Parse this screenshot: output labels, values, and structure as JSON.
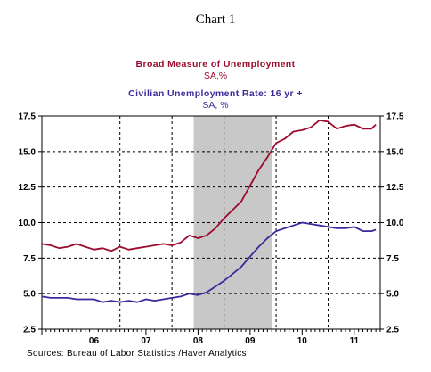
{
  "chart_title": "Chart 1",
  "sources": "Sources:  Bureau of Labor Statistics /Haver Analytics",
  "chart_data": {
    "type": "line",
    "xlim": [
      2005.0,
      2011.5
    ],
    "ylim": [
      2.5,
      17.5
    ],
    "yticks": [
      2.5,
      5.0,
      7.5,
      10.0,
      12.5,
      15.0,
      17.5
    ],
    "ytick_labels": [
      "2.5",
      "5.0",
      "7.5",
      "10.0",
      "12.5",
      "15.0",
      "17.5"
    ],
    "xtick_labels": [
      {
        "label": "06",
        "x": 2006.0
      },
      {
        "label": "07",
        "x": 2007.0
      },
      {
        "label": "08",
        "x": 2008.0
      },
      {
        "label": "09",
        "x": 2009.0
      },
      {
        "label": "10",
        "x": 2010.0
      },
      {
        "label": "11",
        "x": 2011.0
      }
    ],
    "grid": true,
    "recession_shading": {
      "start": 2007.917,
      "end": 2009.417,
      "color": "#c8c8c8"
    },
    "series": [
      {
        "name": "Broad Measure of Unemployment",
        "unit_label": "SA,%",
        "color": "#9b0c2e",
        "x": [
          2005.0,
          2005.167,
          2005.333,
          2005.5,
          2005.667,
          2005.833,
          2006.0,
          2006.167,
          2006.333,
          2006.5,
          2006.667,
          2006.833,
          2007.0,
          2007.167,
          2007.333,
          2007.5,
          2007.667,
          2007.833,
          2008.0,
          2008.167,
          2008.333,
          2008.5,
          2008.667,
          2008.833,
          2009.0,
          2009.167,
          2009.333,
          2009.5,
          2009.667,
          2009.833,
          2010.0,
          2010.167,
          2010.333,
          2010.5,
          2010.667,
          2010.833,
          2011.0,
          2011.167,
          2011.333,
          2011.417
        ],
        "y": [
          8.5,
          8.4,
          8.2,
          8.3,
          8.5,
          8.3,
          8.1,
          8.2,
          8.0,
          8.3,
          8.1,
          8.2,
          8.3,
          8.4,
          8.5,
          8.4,
          8.6,
          9.1,
          8.9,
          9.1,
          9.6,
          10.3,
          10.9,
          11.5,
          12.6,
          13.7,
          14.6,
          15.6,
          15.9,
          16.4,
          16.5,
          16.7,
          17.2,
          17.1,
          16.6,
          16.8,
          16.9,
          16.6,
          16.6,
          16.9
        ],
        "raw_note": ""
      },
      {
        "name": "Civilian Unemployment Rate: 16 yr +",
        "unit_label": "SA, %",
        "color": "#3a2a9b",
        "x": [
          2005.0,
          2005.167,
          2005.333,
          2005.5,
          2005.667,
          2005.833,
          2006.0,
          2006.167,
          2006.333,
          2006.5,
          2006.667,
          2006.833,
          2007.0,
          2007.167,
          2007.333,
          2007.5,
          2007.667,
          2007.833,
          2008.0,
          2008.167,
          2008.333,
          2008.5,
          2008.667,
          2008.833,
          2009.0,
          2009.167,
          2009.333,
          2009.5,
          2009.667,
          2009.833,
          2010.0,
          2010.167,
          2010.333,
          2010.5,
          2010.667,
          2010.833,
          2011.0,
          2011.167,
          2011.333,
          2011.417
        ],
        "y": [
          4.8,
          4.7,
          4.7,
          4.7,
          4.6,
          4.6,
          4.6,
          4.4,
          4.5,
          4.4,
          4.5,
          4.4,
          4.6,
          4.5,
          4.6,
          4.7,
          4.8,
          5.0,
          4.9,
          5.1,
          5.5,
          5.9,
          6.4,
          6.9,
          7.6,
          8.3,
          8.9,
          9.4,
          9.6,
          9.8,
          10.0,
          9.9,
          9.8,
          9.7,
          9.6,
          9.6,
          9.7,
          9.4,
          9.4,
          9.5
        ],
        "raw_note": ""
      }
    ]
  }
}
